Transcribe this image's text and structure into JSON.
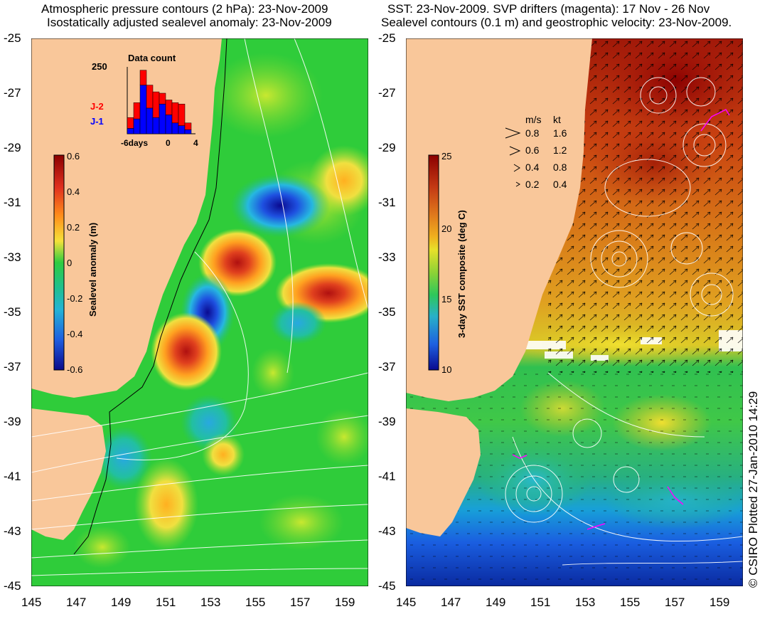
{
  "left_panel": {
    "title_line1": "Atmospheric pressure contours (2 hPa): 23-Nov-2009",
    "title_line2": "Isostatically adjusted sealevel anomaly: 23-Nov-2009",
    "colorbar": {
      "label": "Sealevel anomaly (m)",
      "ticks": [
        "0.6",
        "0.4",
        "0.2",
        "0",
        "-0.2",
        "-0.4",
        "-0.6"
      ]
    },
    "inset": {
      "title": "Data count",
      "ymax_label": "250",
      "legend": [
        {
          "name": "J-2",
          "color": "#ff0000"
        },
        {
          "name": "J-1",
          "color": "#0000ff"
        }
      ],
      "xticks": [
        "-6days",
        "0",
        "4"
      ],
      "bars_j1": [
        20,
        55,
        180,
        95,
        60,
        110,
        70,
        40,
        30,
        15
      ],
      "bars_j2": [
        40,
        60,
        55,
        85,
        95,
        40,
        55,
        75,
        80,
        25
      ]
    }
  },
  "right_panel": {
    "title_line1": "SST: 23-Nov-2009. SVP drifters (magenta): 17 Nov - 26 Nov",
    "title_line2": "Sealevel contours (0.1 m) and geostrophic velocity: 23-Nov-2009.",
    "colorbar": {
      "label": "3-day SST composite (deg C)",
      "ticks": [
        "25",
        "20",
        "15",
        "10"
      ]
    },
    "velocity_legend": {
      "header_ms": "m/s",
      "header_kt": "kt",
      "rows": [
        {
          "ms": "0.8",
          "kt": "1.6"
        },
        {
          "ms": "0.6",
          "kt": "1.2"
        },
        {
          "ms": "0.4",
          "kt": "0.8"
        },
        {
          "ms": "0.2",
          "kt": "0.4"
        }
      ]
    }
  },
  "axes": {
    "lat_ticks": [
      "-25",
      "-27",
      "-29",
      "-31",
      "-33",
      "-35",
      "-37",
      "-39",
      "-41",
      "-43",
      "-45"
    ],
    "lon_ticks": [
      "145",
      "147",
      "149",
      "151",
      "153",
      "155",
      "157",
      "159"
    ]
  },
  "credit": "© CSIRO Plotted 27-Jan-2010 14:29",
  "colors": {
    "land": "#f9c79a",
    "sla_ramp": [
      "#8b0000",
      "#e0301e",
      "#ff8c1a",
      "#f5e23a",
      "#9be22c",
      "#2ecc40",
      "#1fbf70",
      "#23b3d6",
      "#1e5de0",
      "#0a0a8a"
    ],
    "sst_ramp": [
      "#8b0000",
      "#c43a14",
      "#e07a1c",
      "#f0b01e",
      "#e8e02a",
      "#8ad236",
      "#2ec85a",
      "#28b0c8",
      "#1e60e0",
      "#0a0a90"
    ]
  }
}
